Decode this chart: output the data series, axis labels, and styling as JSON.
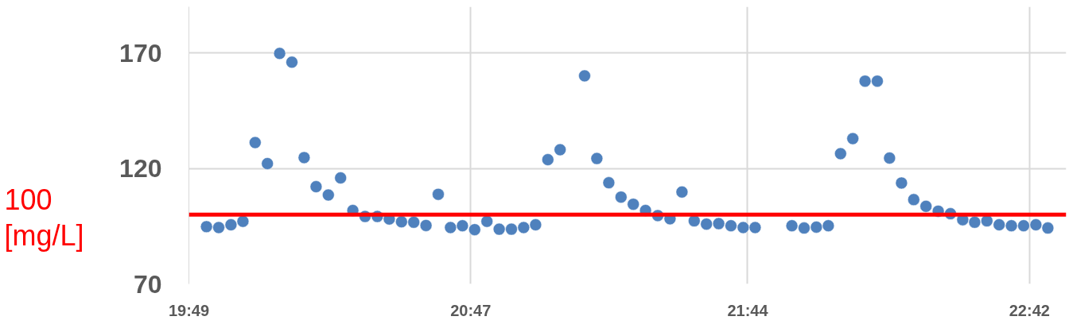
{
  "chart_data": {
    "type": "scatter",
    "x": [
      19.877,
      19.919,
      19.961,
      20.002,
      20.044,
      20.086,
      20.128,
      20.17,
      20.212,
      20.253,
      20.295,
      20.337,
      20.379,
      20.421,
      20.463,
      20.504,
      20.546,
      20.588,
      20.63,
      20.672,
      20.714,
      20.755,
      20.797,
      20.839,
      20.881,
      20.923,
      20.965,
      21.006,
      21.048,
      21.09,
      21.174,
      21.216,
      21.257,
      21.299,
      21.341,
      21.383,
      21.425,
      21.467,
      21.508,
      21.55,
      21.592,
      21.634,
      21.676,
      21.718,
      21.759,
      21.885,
      21.927,
      21.969,
      22.01,
      22.052,
      22.094,
      22.136,
      22.178,
      22.22,
      22.261,
      22.303,
      22.345,
      22.387,
      22.429,
      22.471,
      22.512,
      22.554,
      22.596,
      22.638,
      22.68,
      22.722,
      22.763
    ],
    "series": [
      {
        "color": "#4f81bd",
        "values": [
          94.8,
          94.4,
          95.6,
          97.1,
          131.2,
          122.1,
          169.8,
          166.0,
          124.7,
          112.1,
          108.5,
          115.9,
          101.8,
          99.2,
          99.2,
          98.1,
          96.9,
          96.7,
          95.3,
          108.8,
          94.4,
          95.2,
          93.5,
          97.1,
          93.7,
          93.7,
          94.4,
          95.6,
          123.8,
          128.1,
          160.1,
          124.3,
          113.8,
          107.6,
          104.5,
          101.8,
          99.6,
          98.2,
          109.8,
          97.3,
          95.9,
          96.1,
          95.2,
          94.4,
          94.4,
          95.2,
          94.2,
          94.6,
          95.2,
          126.4,
          132.9,
          157.8,
          157.8,
          124.5,
          113.7,
          106.5,
          103.6,
          101.5,
          100.4,
          97.8,
          96.7,
          97.3,
          95.6,
          95.2,
          95.2,
          95.6,
          94.2
        ]
      }
    ],
    "xlim": [
      19.8167,
      22.826
    ],
    "xticks": [
      {
        "value": 19.8167,
        "label": "19:49"
      },
      {
        "value": 20.7833,
        "label": "20:47"
      },
      {
        "value": 21.7333,
        "label": "21:44"
      },
      {
        "value": 22.7,
        "label": "22:42"
      }
    ],
    "ylim": [
      70,
      190
    ],
    "yticks": [
      70,
      120,
      170
    ],
    "ref_lines": [
      {
        "axis": "y",
        "value": 100,
        "label": "100\n[mg/L]",
        "color": "#ff0000"
      }
    ],
    "grid": true,
    "marker": "circle"
  }
}
